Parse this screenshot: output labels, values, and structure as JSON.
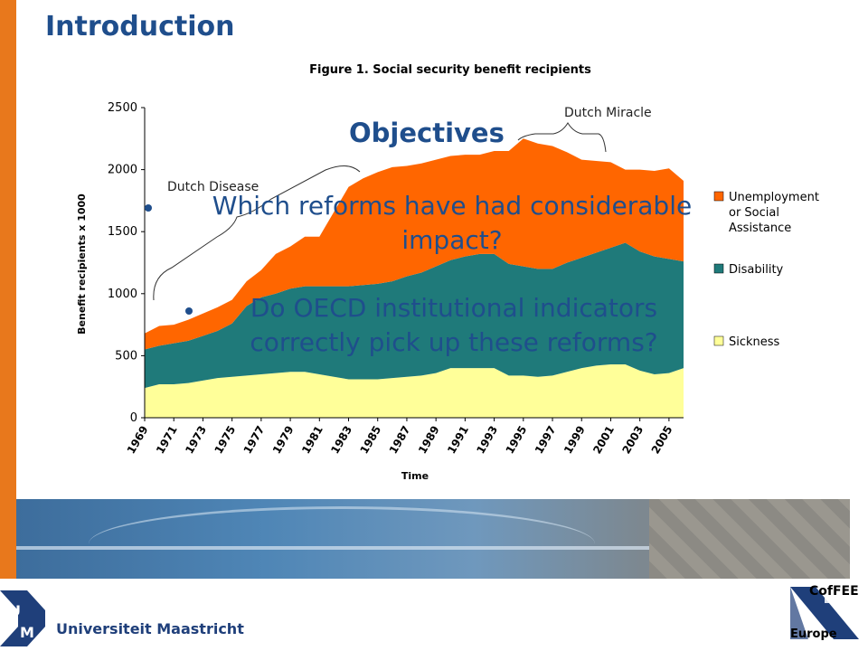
{
  "slide": {
    "title": "Introduction",
    "objectives_title": "Objectives",
    "bullets": [
      "Which reforms have had considerable impact?",
      "Do OECD institutional indicators correctly pick up these reforms?"
    ]
  },
  "annotations": {
    "dutch_miracle": "Dutch Miracle",
    "dutch_disease": "Dutch Disease"
  },
  "footer": {
    "university": "Universiteit Maastricht",
    "cof_top": "CofFEE",
    "cof_bottom": "Europe"
  },
  "chart_data": {
    "type": "area",
    "stacked": true,
    "title": "Figure 1. Social security benefit recipients",
    "xlabel": "Time",
    "ylabel": "Benefit recipients x 1000",
    "ylim": [
      0,
      2500
    ],
    "yticks": [
      0,
      500,
      1000,
      1500,
      2000,
      2500
    ],
    "x": [
      1969,
      1970,
      1971,
      1972,
      1973,
      1974,
      1975,
      1976,
      1977,
      1978,
      1979,
      1980,
      1981,
      1982,
      1983,
      1984,
      1985,
      1986,
      1987,
      1988,
      1989,
      1990,
      1991,
      1992,
      1993,
      1994,
      1995,
      1996,
      1997,
      1998,
      1999,
      2000,
      2001,
      2002,
      2003,
      2004,
      2005,
      2006
    ],
    "xtick_labels": [
      "1969",
      "1971",
      "1973",
      "1975",
      "1977",
      "1979",
      "1981",
      "1983",
      "1985",
      "1987",
      "1989",
      "1991",
      "1993",
      "1995",
      "1997",
      "1999",
      "2001",
      "2003",
      "2005"
    ],
    "legend_position": "right",
    "grid": false,
    "series": [
      {
        "name": "Sickness",
        "color": "#ffff99",
        "values": [
          240,
          270,
          270,
          280,
          300,
          320,
          330,
          340,
          350,
          360,
          370,
          370,
          350,
          330,
          310,
          310,
          310,
          320,
          330,
          340,
          360,
          400,
          400,
          400,
          400,
          340,
          340,
          330,
          340,
          370,
          400,
          420,
          430,
          430,
          380,
          350,
          360,
          400
        ]
      },
      {
        "name": "Disability",
        "color": "#1f7a7a",
        "values": [
          310,
          310,
          330,
          340,
          360,
          380,
          430,
          560,
          620,
          640,
          670,
          690,
          710,
          730,
          750,
          760,
          770,
          780,
          810,
          830,
          860,
          870,
          900,
          920,
          920,
          900,
          880,
          870,
          860,
          880,
          890,
          910,
          940,
          980,
          960,
          950,
          920,
          860
        ]
      },
      {
        "name": "Unemployment or Social Assistance",
        "color": "#ff6600",
        "values": [
          130,
          160,
          150,
          170,
          180,
          190,
          190,
          200,
          220,
          320,
          340,
          400,
          400,
          600,
          800,
          860,
          900,
          920,
          890,
          880,
          860,
          840,
          820,
          800,
          830,
          910,
          1030,
          1010,
          990,
          890,
          790,
          740,
          690,
          590,
          660,
          690,
          730,
          650
        ]
      }
    ]
  }
}
